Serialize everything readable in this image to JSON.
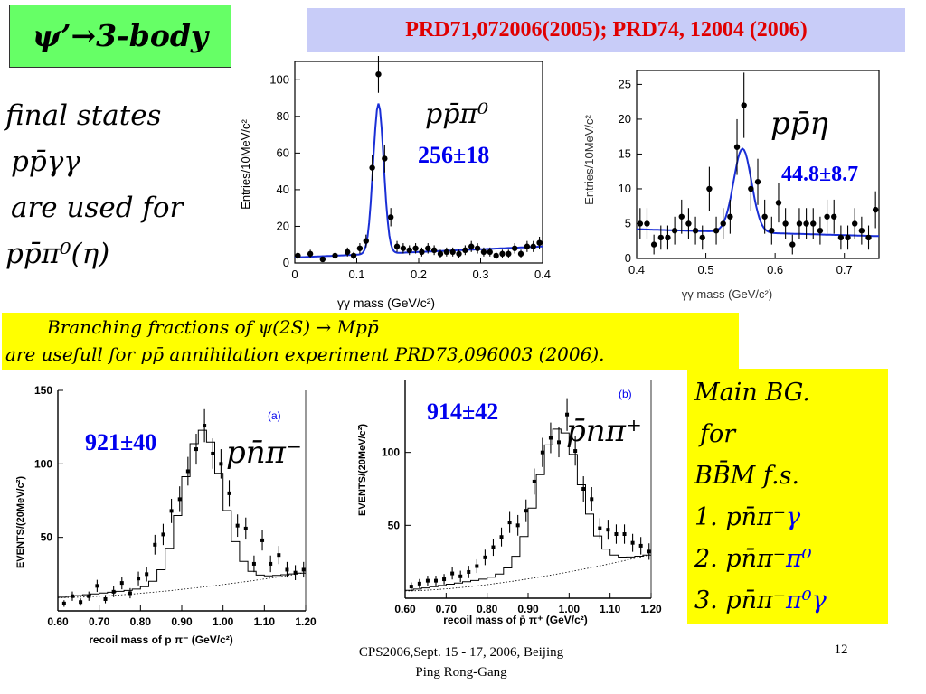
{
  "title": "ψ’→3-body",
  "reference": "PRD71,072006(2005); PRD74, 12004 (2006)",
  "left_text": {
    "line1": "final states",
    "line2": "pp̄γγ",
    "line3": "are used for",
    "line4": "pp̄π⁰(η)"
  },
  "middle_band": {
    "line1": "Branching fractions of ψ(2S) → Mpp̄",
    "line2": "are usefull for pp̄ annihilation experiment PRD73,096003 (2006)."
  },
  "right_box": {
    "line1": "Main BG.",
    "line2": "for",
    "line3": "BB̄M f.s.",
    "items": [
      {
        "prefix": "1. pn̄π⁻",
        "suffix": "γ"
      },
      {
        "prefix": "2. pn̄π⁻",
        "suffix": "π⁰"
      },
      {
        "prefix": "3. pn̄π⁻",
        "suffix": "π⁰γ"
      }
    ]
  },
  "footer": {
    "line1": "CPS2006,Sept. 15 - 17, 2006, Beijing",
    "line2": "Ping Rong-Gang",
    "page": "12"
  },
  "colors": {
    "title_bg": "#66ff66",
    "banner_bg": "#c8ccf8",
    "banner_text": "#e00000",
    "highlight": "#ffff00",
    "fit_curve": "#1a2fd6",
    "yield_text": "#0000ee"
  },
  "chart_data": [
    {
      "id": "ppi0",
      "type": "scatter",
      "label": "pp̄π⁰",
      "yield": "256±18",
      "xlabel": "γγ mass (GeV/c²)",
      "ylabel": "Entries/10MeV/c²",
      "xlim": [
        0,
        0.4
      ],
      "ylim": [
        0,
        110
      ],
      "xticks": [
        "0",
        "0.1",
        "0.2",
        "0.3",
        "0.4"
      ],
      "yticks": [
        "0",
        "20",
        "40",
        "60",
        "80",
        "100"
      ],
      "points": [
        [
          0.005,
          4
        ],
        [
          0.025,
          5
        ],
        [
          0.045,
          2
        ],
        [
          0.065,
          4
        ],
        [
          0.085,
          6
        ],
        [
          0.095,
          4
        ],
        [
          0.105,
          8
        ],
        [
          0.115,
          12
        ],
        [
          0.125,
          52
        ],
        [
          0.135,
          103
        ],
        [
          0.145,
          57
        ],
        [
          0.155,
          25
        ],
        [
          0.165,
          9
        ],
        [
          0.175,
          8
        ],
        [
          0.185,
          7
        ],
        [
          0.195,
          8
        ],
        [
          0.205,
          6
        ],
        [
          0.215,
          8
        ],
        [
          0.225,
          7
        ],
        [
          0.235,
          5
        ],
        [
          0.245,
          6
        ],
        [
          0.255,
          6
        ],
        [
          0.265,
          5
        ],
        [
          0.275,
          7
        ],
        [
          0.285,
          9
        ],
        [
          0.295,
          8
        ],
        [
          0.305,
          6
        ],
        [
          0.315,
          6
        ],
        [
          0.325,
          4
        ],
        [
          0.335,
          5
        ],
        [
          0.345,
          5
        ],
        [
          0.355,
          8
        ],
        [
          0.365,
          5
        ],
        [
          0.375,
          9
        ],
        [
          0.385,
          9
        ],
        [
          0.395,
          11
        ]
      ],
      "fit": {
        "mean": 0.135,
        "sigma": 0.0085,
        "amp": 82,
        "bg_start": 3,
        "bg_end": 9
      }
    },
    {
      "id": "peta",
      "type": "scatter",
      "label": "pp̄η",
      "yield": "44.8±8.7",
      "xlabel": "γγ mass (GeV/c²)",
      "ylabel": "Entries/10MeV/c²",
      "xlim": [
        0.4,
        0.75
      ],
      "ylim": [
        0,
        27
      ],
      "xticks": [
        "0.4",
        "0.5",
        "0.6",
        "0.7"
      ],
      "yticks": [
        "0",
        "5",
        "10",
        "15",
        "20",
        "25"
      ],
      "points": [
        [
          0.405,
          5
        ],
        [
          0.415,
          5
        ],
        [
          0.425,
          2
        ],
        [
          0.435,
          3
        ],
        [
          0.445,
          3
        ],
        [
          0.455,
          4
        ],
        [
          0.465,
          6
        ],
        [
          0.475,
          5
        ],
        [
          0.485,
          4
        ],
        [
          0.495,
          3
        ],
        [
          0.505,
          10
        ],
        [
          0.515,
          4
        ],
        [
          0.525,
          5
        ],
        [
          0.535,
          6
        ],
        [
          0.545,
          16
        ],
        [
          0.555,
          22
        ],
        [
          0.565,
          10
        ],
        [
          0.575,
          11
        ],
        [
          0.585,
          6
        ],
        [
          0.595,
          4
        ],
        [
          0.605,
          8
        ],
        [
          0.615,
          5
        ],
        [
          0.625,
          2
        ],
        [
          0.635,
          5
        ],
        [
          0.645,
          5
        ],
        [
          0.655,
          5
        ],
        [
          0.665,
          4
        ],
        [
          0.675,
          6
        ],
        [
          0.685,
          6
        ],
        [
          0.695,
          3
        ],
        [
          0.705,
          3
        ],
        [
          0.715,
          5
        ],
        [
          0.725,
          4
        ],
        [
          0.735,
          3
        ],
        [
          0.745,
          7
        ]
      ],
      "fit": {
        "mean": 0.553,
        "sigma": 0.013,
        "amp": 12,
        "bg_start": 4.2,
        "bg_end": 3.2
      }
    },
    {
      "id": "pnpi_minus",
      "type": "scatter",
      "panel": "(a)",
      "label": "pn̄π⁻",
      "yield": "921±40",
      "xlabel": "recoil mass of p π⁻ (GeV/c²)",
      "ylabel": "EVENTS/(20MeV/c²)",
      "xlim": [
        0.6,
        1.2
      ],
      "ylim": [
        0,
        150
      ],
      "xticks": [
        "0.60",
        "0.70",
        "0.80",
        "0.90",
        "1.00",
        "1.10",
        "1.20"
      ],
      "yticks": [
        "50",
        "100",
        "150"
      ],
      "points": [
        [
          0.615,
          5
        ],
        [
          0.635,
          10
        ],
        [
          0.655,
          6
        ],
        [
          0.675,
          10
        ],
        [
          0.695,
          17
        ],
        [
          0.715,
          8
        ],
        [
          0.735,
          13
        ],
        [
          0.755,
          19
        ],
        [
          0.775,
          12
        ],
        [
          0.795,
          22
        ],
        [
          0.815,
          25
        ],
        [
          0.835,
          45
        ],
        [
          0.855,
          52
        ],
        [
          0.875,
          68
        ],
        [
          0.895,
          76
        ],
        [
          0.915,
          95
        ],
        [
          0.935,
          110
        ],
        [
          0.955,
          126
        ],
        [
          0.975,
          107
        ],
        [
          0.995,
          100
        ],
        [
          1.015,
          80
        ],
        [
          1.035,
          58
        ],
        [
          1.055,
          56
        ],
        [
          1.075,
          32
        ],
        [
          1.095,
          48
        ],
        [
          1.115,
          32
        ],
        [
          1.135,
          38
        ],
        [
          1.155,
          28
        ],
        [
          1.175,
          26
        ],
        [
          1.195,
          28
        ]
      ],
      "fit": {
        "mean": 0.95,
        "sigma": 0.048,
        "amp": 104,
        "bg_start": 9,
        "bg_end": 26
      }
    },
    {
      "id": "pnpi_plus",
      "type": "scatter",
      "panel": "(b)",
      "label": "p̄nπ⁺",
      "yield": "914±42",
      "xlabel": "recoil mass of p̄ π⁺ (GeV/c²)",
      "ylabel": "EVENTS/(20MeV/c²)",
      "xlim": [
        0.6,
        1.2
      ],
      "ylim": [
        0,
        150
      ],
      "xticks": [
        "0.60",
        "0.70",
        "0.80",
        "0.90",
        "1.00",
        "1.10",
        "1.20"
      ],
      "yticks": [
        "50",
        "100"
      ],
      "points": [
        [
          0.615,
          8
        ],
        [
          0.635,
          10
        ],
        [
          0.655,
          12
        ],
        [
          0.675,
          12
        ],
        [
          0.695,
          13
        ],
        [
          0.715,
          17
        ],
        [
          0.735,
          15
        ],
        [
          0.755,
          18
        ],
        [
          0.775,
          22
        ],
        [
          0.795,
          28
        ],
        [
          0.815,
          35
        ],
        [
          0.835,
          42
        ],
        [
          0.855,
          52
        ],
        [
          0.875,
          50
        ],
        [
          0.895,
          60
        ],
        [
          0.915,
          80
        ],
        [
          0.935,
          100
        ],
        [
          0.955,
          110
        ],
        [
          0.975,
          107
        ],
        [
          0.995,
          126
        ],
        [
          1.015,
          101
        ],
        [
          1.035,
          75
        ],
        [
          1.055,
          68
        ],
        [
          1.075,
          48
        ],
        [
          1.095,
          47
        ],
        [
          1.115,
          44
        ],
        [
          1.135,
          44
        ],
        [
          1.155,
          38
        ],
        [
          1.175,
          36
        ],
        [
          1.195,
          32
        ]
      ],
      "fit": {
        "mean": 0.975,
        "sigma": 0.052,
        "amp": 96,
        "bg_start": 5,
        "bg_end": 30
      }
    }
  ]
}
